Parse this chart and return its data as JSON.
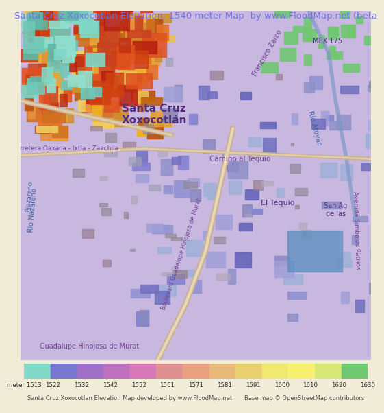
{
  "title": "Santa Cruz Xoxocotlan Elevation: 1540 meter Map  by www.FloodMap.net (beta",
  "title_color": "#7070e0",
  "title_fontsize": 9.5,
  "background_color": "#f0ecd8",
  "colorbar_labels": [
    "meter 1513",
    "1522",
    "1532",
    "1542",
    "1552",
    "1561",
    "1571",
    "1581",
    "1591",
    "1600",
    "1610",
    "1620",
    "1630"
  ],
  "colorbar_colors": [
    "#80d8c8",
    "#7878d0",
    "#a070c8",
    "#c070c0",
    "#d878b8",
    "#e09090",
    "#e8a080",
    "#e8b878",
    "#e8d070",
    "#f0e870",
    "#f8f070",
    "#d8e878",
    "#70c870"
  ],
  "footer_left": "Santa Cruz Xoxocotlan Elevation Map developed by www.FloodMap.net",
  "footer_right": "Base map © OpenStreetMap contributors",
  "map_bg": "#c8b8e0",
  "figwidth": 5.12,
  "figheight": 5.82
}
